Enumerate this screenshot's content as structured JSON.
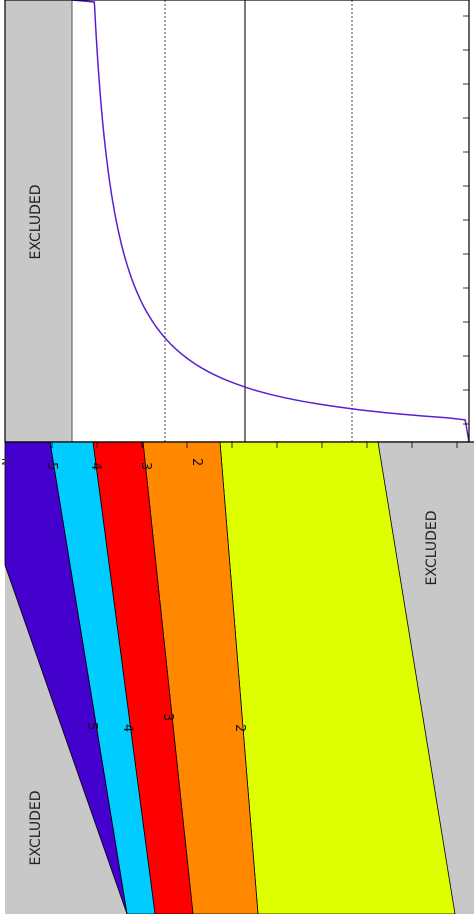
{
  "top_panel": {
    "excluded_label": "EXCLUDED",
    "reference_lines": [
      {
        "style": "dotted",
        "x_px_hint": ""
      },
      {
        "style": "solid"
      },
      {
        "style": "dotted"
      }
    ]
  },
  "bottom_panel": {
    "excluded_label_right": "EXCLUDED",
    "excluded_label_left": "EXCLUDED",
    "band_labels_top": [
      "5",
      "4",
      "3",
      "2"
    ],
    "band_labels_mid": [
      "5",
      "4",
      "3",
      "2"
    ],
    "corner_tick_label": "N"
  },
  "colors": {
    "excluded": "#c8c8c8",
    "curve": "#5a1fcf",
    "band_5": "#4400cc",
    "band_4": "#00ccff",
    "band_3": "#ff0000",
    "band_2": "#ff8800",
    "band_1": "#ddff00",
    "frame": "#000000"
  },
  "chart_data": [
    {
      "type": "line",
      "series": [
        {
          "values": [
            [
              0.0,
              0.0
            ],
            [
              0.05,
              0.99
            ],
            [
              0.1,
              0.97
            ],
            [
              0.2,
              0.93
            ],
            [
              0.3,
              0.87
            ],
            [
              0.4,
              0.8
            ],
            [
              0.5,
              0.69
            ],
            [
              0.6,
              0.55
            ],
            [
              0.7,
              0.4
            ],
            [
              0.8,
              0.24
            ],
            [
              0.9,
              0.1
            ],
            [
              1.0,
              0.0
            ]
          ]
        }
      ],
      "grid": false
    },
    {
      "type": "heatmap",
      "levels": [
        "1",
        "2",
        "3",
        "4",
        "5"
      ],
      "contour_labels": [
        "2",
        "3",
        "4",
        "5"
      ]
    }
  ]
}
